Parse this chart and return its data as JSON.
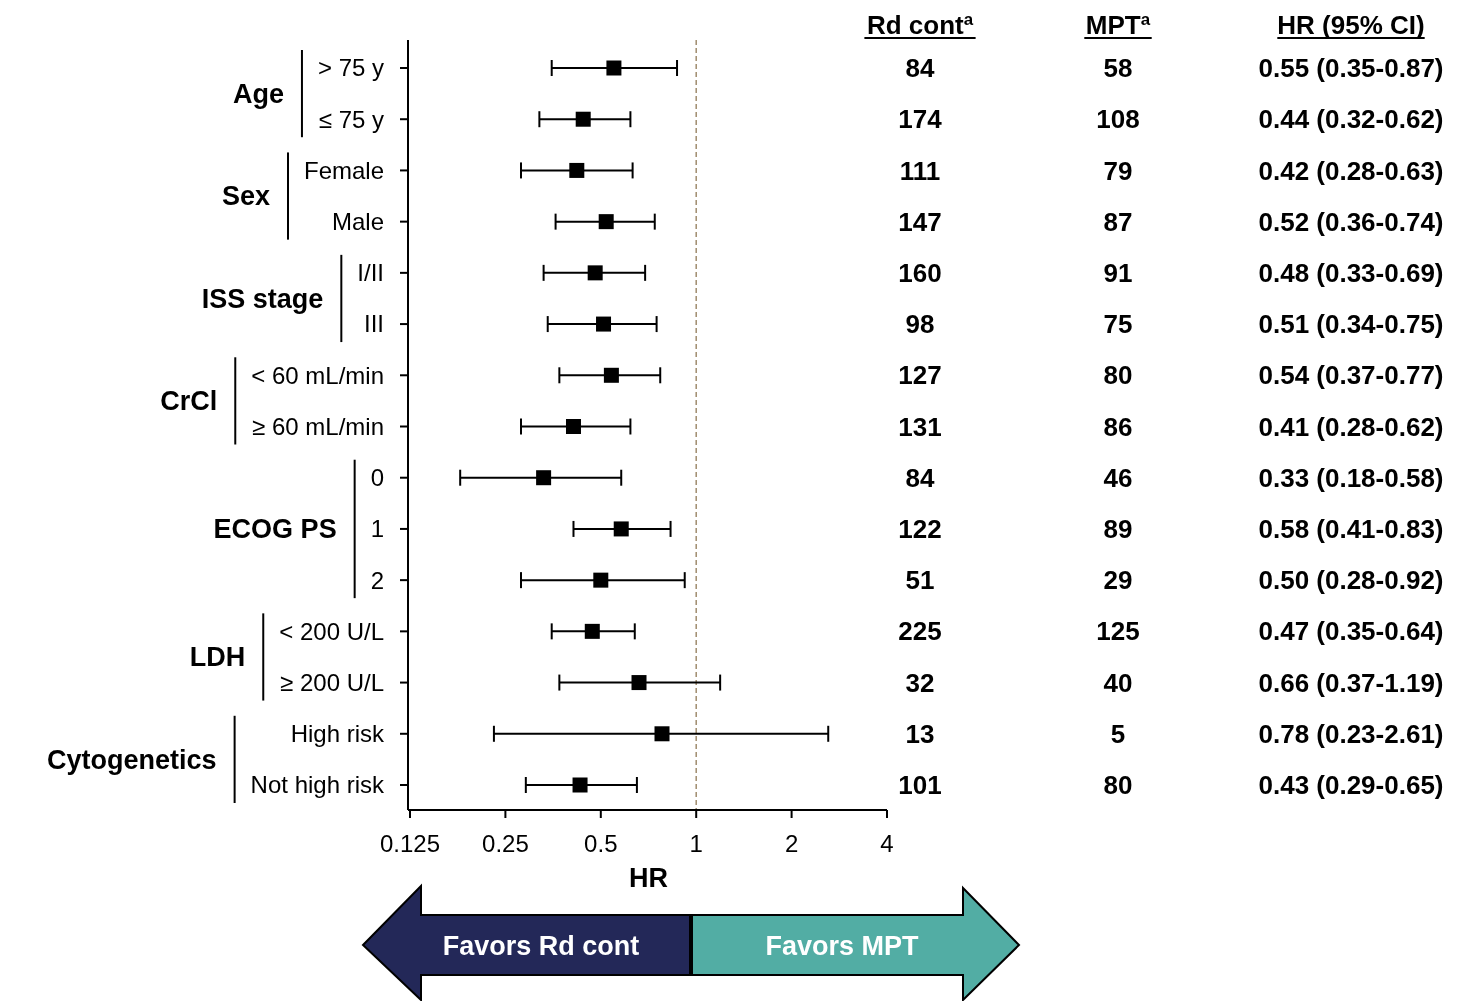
{
  "chart_data": {
    "type": "scatter",
    "orientation": "horizontal",
    "xlabel": "HR",
    "color": "#000000",
    "marker": "square",
    "log": "x",
    "grid": false,
    "categories": [
      "> 75 y",
      "≤ 75 y",
      "Female",
      "Male",
      "I/II",
      "III",
      "< 60 mL/min",
      "≥ 60 mL/min",
      "0",
      "1",
      "2",
      "< 200 U/L",
      "≥ 200 U/L",
      "High risk",
      "Not high risk"
    ],
    "values": [
      0.55,
      0.44,
      0.42,
      0.52,
      0.48,
      0.51,
      0.54,
      0.41,
      0.33,
      0.58,
      0.5,
      0.47,
      0.66,
      0.78,
      0.43
    ],
    "errors": [
      [
        0.35,
        0.87
      ],
      [
        0.32,
        0.62
      ],
      [
        0.28,
        0.63
      ],
      [
        0.36,
        0.74
      ],
      [
        0.33,
        0.69
      ],
      [
        0.34,
        0.75
      ],
      [
        0.37,
        0.77
      ],
      [
        0.28,
        0.62
      ],
      [
        0.18,
        0.58
      ],
      [
        0.41,
        0.83
      ],
      [
        0.28,
        0.92
      ],
      [
        0.35,
        0.64
      ],
      [
        0.37,
        1.19
      ],
      [
        0.23,
        2.61
      ],
      [
        0.29,
        0.65
      ]
    ],
    "value_labels": [
      "0.55 (0.35-0.87)",
      "0.44 (0.32-0.62)",
      "0.42 (0.28-0.63)",
      "0.52 (0.36-0.74)",
      "0.48 (0.33-0.69)",
      "0.51 (0.34-0.75)",
      "0.54 (0.37-0.77)",
      "0.41 (0.28-0.62)",
      "0.33 (0.18-0.58)",
      "0.58 (0.41-0.83)",
      "0.50 (0.28-0.92)",
      "0.47 (0.35-0.64)",
      "0.66 (0.37-1.19)",
      "0.78 (0.23-2.61)",
      "0.43 (0.29-0.65)"
    ],
    "xlim": [
      0.125,
      4
    ],
    "xticks": [
      0.125,
      0.25,
      0.5,
      1,
      2,
      4
    ],
    "ref_lines": [
      {
        "axis": "x",
        "value": 1,
        "color": "#a08c6e",
        "line_style": "dashed"
      }
    ],
    "annotations": [
      "Age",
      "Sex",
      "ISS stage",
      "CrCl",
      "ECOG PS",
      "LDH",
      "Cytogenetics",
      "Rd cont$^{a}$",
      "MPT$^{a}$",
      "HR (95% CI)",
      "84",
      "174",
      "111",
      "147",
      "160",
      "98",
      "127",
      "131",
      "84",
      "122",
      "51",
      "225",
      "32",
      "13",
      "101",
      "58",
      "108",
      "79",
      "87",
      "91",
      "75",
      "80",
      "86",
      "46",
      "89",
      "29",
      "125",
      "40",
      "5",
      "80",
      "Favors Rd cont",
      "Favors MPT"
    ]
  }
}
